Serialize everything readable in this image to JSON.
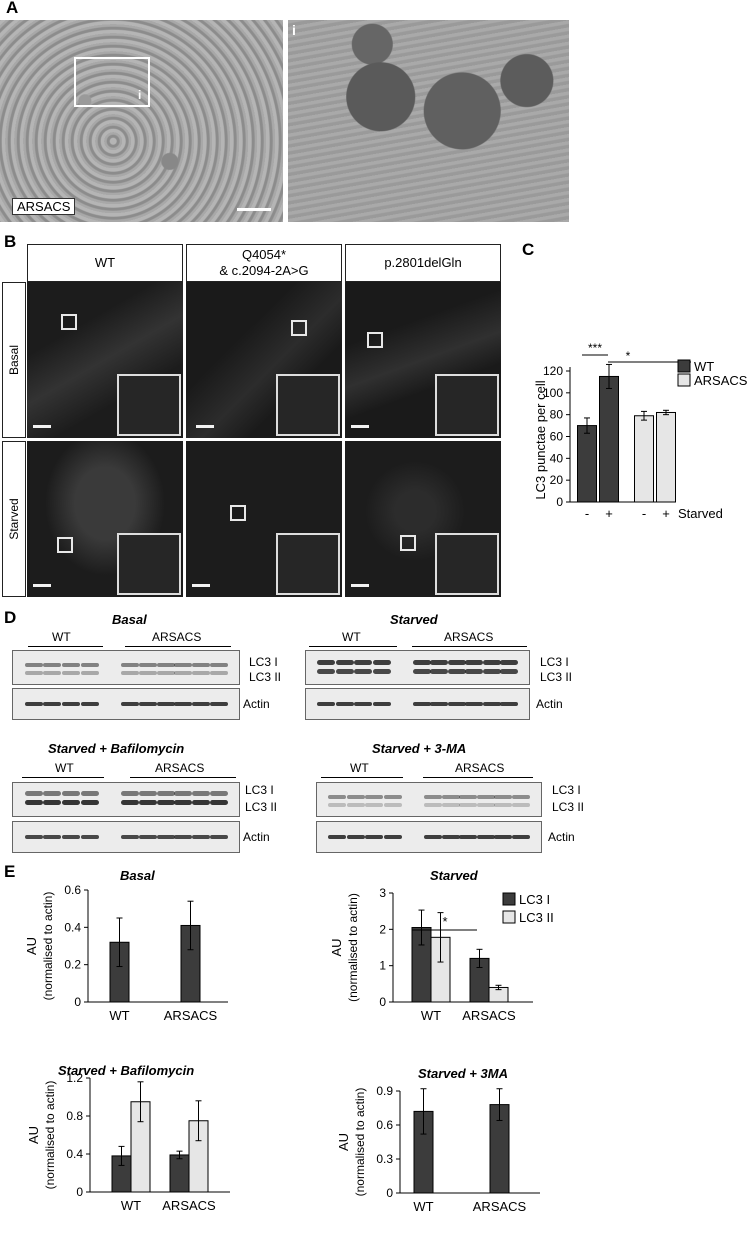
{
  "panels": {
    "A": "A",
    "B": "B",
    "C": "C",
    "D": "D",
    "E": "E"
  },
  "panelA": {
    "label": "ARSACS",
    "inset_label": "i",
    "roi_label": "i"
  },
  "panelB": {
    "columns": [
      "WT",
      "Q4054*\n& c.2094-2A>G",
      "p.2801delGln"
    ],
    "rows": [
      "Basal",
      "Starved"
    ]
  },
  "panelD": {
    "blots": [
      {
        "title": "Basal",
        "wt": "WT",
        "arsacs": "ARSACS",
        "lc3i": "LC3 I",
        "lc3ii": "LC3 II",
        "actin": "Actin"
      },
      {
        "title": "Starved",
        "wt": "WT",
        "arsacs": "ARSACS",
        "lc3i": "LC3 I",
        "lc3ii": "LC3 II",
        "actin": "Actin"
      },
      {
        "title": "Starved + Bafilomycin",
        "wt": "WT",
        "arsacs": "ARSACS",
        "lc3i": "LC3 I",
        "lc3ii": "LC3 II",
        "actin": "Actin"
      },
      {
        "title": "Starved + 3-MA",
        "wt": "WT",
        "arsacs": "ARSACS",
        "lc3i": "LC3 I",
        "lc3ii": "LC3 II",
        "actin": "Actin"
      }
    ]
  },
  "colors": {
    "dark": "#3c3c3c",
    "light": "#e6e6e6"
  },
  "chart_data": [
    {
      "id": "C",
      "type": "bar",
      "title": "",
      "ylabel": "LC3 punctae per cell",
      "xlabel": "Starved",
      "ylim": [
        0,
        120
      ],
      "yticks": [
        0,
        20,
        40,
        60,
        80,
        100,
        120
      ],
      "categories": [
        "-",
        "+",
        "-",
        "+"
      ],
      "series": [
        {
          "name": "WT",
          "values": [
            70,
            115,
            null,
            null
          ],
          "errors": [
            7,
            11,
            null,
            null
          ]
        },
        {
          "name": "ARSACS",
          "values": [
            null,
            null,
            79,
            82
          ],
          "errors": [
            null,
            null,
            4,
            2
          ]
        }
      ],
      "legend": [
        "WT",
        "ARSACS"
      ],
      "significance": [
        "***",
        "*"
      ]
    },
    {
      "id": "E1",
      "type": "bar",
      "title": "Basal",
      "ylabel": "AU",
      "ylabel2": "(normalised to actin)",
      "ylim": [
        0,
        0.6
      ],
      "yticks": [
        "0",
        "0.2",
        "0.4",
        "0.6"
      ],
      "yvals": [
        0,
        0.2,
        0.4,
        0.6
      ],
      "categories": [
        "WT",
        "ARSACS"
      ],
      "series": [
        {
          "name": "LC3 I",
          "values": [
            0.32,
            0.41
          ],
          "errors": [
            0.13,
            0.13
          ]
        }
      ]
    },
    {
      "id": "E2",
      "type": "bar",
      "title": "Starved",
      "ylabel": "AU",
      "ylabel2": "(normalised to actin)",
      "ylim": [
        0,
        3
      ],
      "yticks": [
        "0",
        "1",
        "2",
        "3"
      ],
      "yvals": [
        0,
        1,
        2,
        3
      ],
      "categories": [
        "WT",
        "ARSACS"
      ],
      "series": [
        {
          "name": "LC3 I",
          "values": [
            2.05,
            1.2
          ],
          "errors": [
            0.48,
            0.25
          ]
        },
        {
          "name": "LC3 II",
          "values": [
            1.78,
            0.4
          ],
          "errors": [
            0.68,
            0.06
          ]
        }
      ],
      "legend": [
        "LC3 I",
        "LC3 II"
      ],
      "significance": [
        "*"
      ]
    },
    {
      "id": "E3",
      "type": "bar",
      "title": "Starved + Bafilomycin",
      "ylabel": "AU",
      "ylabel2": "(normalised to actin)",
      "ylim": [
        0,
        1.2
      ],
      "yticks": [
        "0",
        "0.4",
        "0.8",
        "1.2"
      ],
      "yvals": [
        0,
        0.4,
        0.8,
        1.2
      ],
      "categories": [
        "WT",
        "ARSACS"
      ],
      "series": [
        {
          "name": "LC3 I",
          "values": [
            0.38,
            0.39
          ],
          "errors": [
            0.1,
            0.04
          ]
        },
        {
          "name": "LC3 II",
          "values": [
            0.95,
            0.75
          ],
          "errors": [
            0.21,
            0.21
          ]
        }
      ]
    },
    {
      "id": "E4",
      "type": "bar",
      "title": "Starved + 3MA",
      "ylabel": "AU",
      "ylabel2": "(normalised to actin)",
      "ylim": [
        0,
        0.9
      ],
      "yticks": [
        "0",
        "0.3",
        "0.6",
        "0.9"
      ],
      "yvals": [
        0,
        0.3,
        0.6,
        0.9
      ],
      "categories": [
        "WT",
        "ARSACS"
      ],
      "series": [
        {
          "name": "LC3 I",
          "values": [
            0.72,
            0.78
          ],
          "errors": [
            0.2,
            0.14
          ]
        }
      ]
    }
  ]
}
